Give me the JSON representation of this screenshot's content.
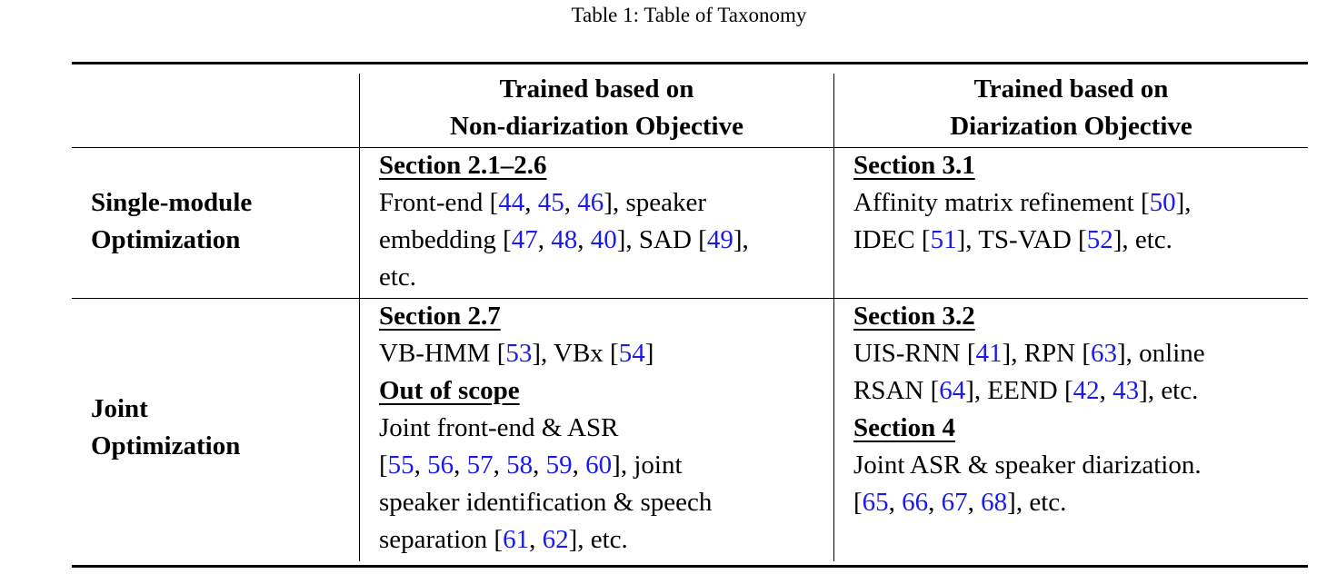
{
  "caption": "Table 1: Table of Taxonomy",
  "columns": [
    {
      "line1": "Trained based on",
      "line2": "Non-diarization Objective"
    },
    {
      "line1": "Trained based on",
      "line2": "Diarization Objective"
    }
  ],
  "rows": [
    {
      "label_line1": "Single-module",
      "label_line2": "Optimization",
      "nondiar": {
        "section": "Section 2.1–2.6",
        "lines": [
          [
            {
              "t": "Front-end ["
            },
            {
              "r": "44"
            },
            {
              "t": ", "
            },
            {
              "r": "45"
            },
            {
              "t": ", "
            },
            {
              "r": "46"
            },
            {
              "t": "], speaker"
            }
          ],
          [
            {
              "t": "embedding ["
            },
            {
              "r": "47"
            },
            {
              "t": ", "
            },
            {
              "r": "48"
            },
            {
              "t": ", "
            },
            {
              "r": "40"
            },
            {
              "t": "], SAD ["
            },
            {
              "r": "49"
            },
            {
              "t": "],"
            }
          ],
          [
            {
              "t": "etc."
            }
          ]
        ]
      },
      "diar": {
        "section": "Section 3.1",
        "lines": [
          [
            {
              "t": "Affinity matrix refinement ["
            },
            {
              "r": "50"
            },
            {
              "t": "],"
            }
          ],
          [
            {
              "t": "IDEC ["
            },
            {
              "r": "51"
            },
            {
              "t": "], TS-VAD ["
            },
            {
              "r": "52"
            },
            {
              "t": "], etc."
            }
          ]
        ]
      }
    },
    {
      "label_line1": "Joint",
      "label_line2": "Optimization",
      "nondiar": {
        "section": "Section 2.7",
        "lines": [
          [
            {
              "t": "VB-HMM ["
            },
            {
              "r": "53"
            },
            {
              "t": "], VBx ["
            },
            {
              "r": "54"
            },
            {
              "t": "]"
            }
          ]
        ],
        "section2": "Out of scope",
        "lines2": [
          [
            {
              "t": "Joint front-end & ASR"
            }
          ],
          [
            {
              "t": "["
            },
            {
              "r": "55"
            },
            {
              "t": ", "
            },
            {
              "r": "56"
            },
            {
              "t": ", "
            },
            {
              "r": "57"
            },
            {
              "t": ", "
            },
            {
              "r": "58"
            },
            {
              "t": ", "
            },
            {
              "r": "59"
            },
            {
              "t": ", "
            },
            {
              "r": "60"
            },
            {
              "t": "], joint"
            }
          ],
          [
            {
              "t": "speaker identification & speech"
            }
          ],
          [
            {
              "t": "separation ["
            },
            {
              "r": "61"
            },
            {
              "t": ", "
            },
            {
              "r": "62"
            },
            {
              "t": "], etc."
            }
          ]
        ]
      },
      "diar": {
        "section": "Section 3.2",
        "lines": [
          [
            {
              "t": "UIS-RNN ["
            },
            {
              "r": "41"
            },
            {
              "t": "], RPN ["
            },
            {
              "r": "63"
            },
            {
              "t": "], online"
            }
          ],
          [
            {
              "t": "RSAN ["
            },
            {
              "r": "64"
            },
            {
              "t": "], EEND ["
            },
            {
              "r": "42"
            },
            {
              "t": ", "
            },
            {
              "r": "43"
            },
            {
              "t": "], etc."
            }
          ]
        ],
        "section2": "Section 4",
        "lines2": [
          [
            {
              "t": "Joint ASR & speaker diarization."
            }
          ],
          [
            {
              "t": "["
            },
            {
              "r": "65"
            },
            {
              "t": ", "
            },
            {
              "r": "66"
            },
            {
              "t": ", "
            },
            {
              "r": "67"
            },
            {
              "t": ", "
            },
            {
              "r": "68"
            },
            {
              "t": "], etc."
            }
          ]
        ]
      }
    }
  ],
  "colors": {
    "ref_link": "#1a1aee",
    "text": "#000000"
  }
}
